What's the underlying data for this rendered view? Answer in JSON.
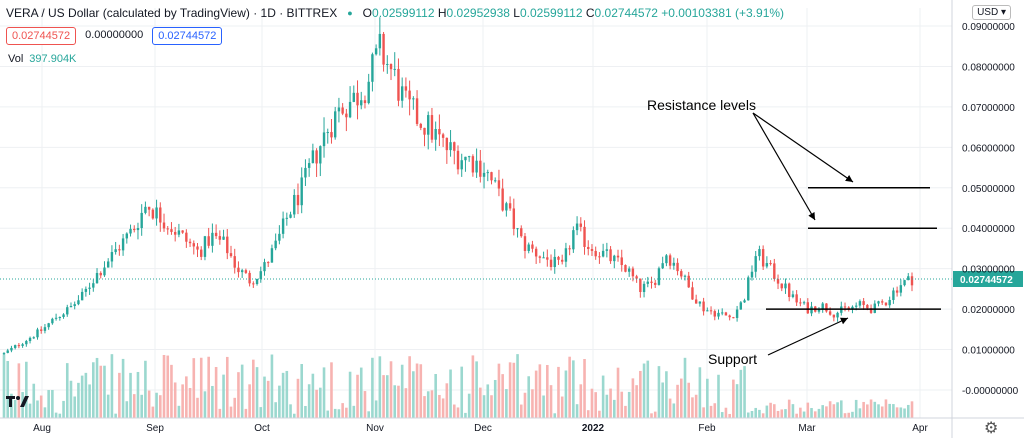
{
  "header": {
    "title": "VERA / US Dollar (calculated by TradingView) · 1D · BITTREX",
    "ohlc": {
      "o_label": "O",
      "o": "0.02599112",
      "h_label": "H",
      "h": "0.02952938",
      "l_label": "L",
      "l": "0.02599112",
      "c_label": "C",
      "c": "0.02744572",
      "change": "+0.00103381 (+3.91%)"
    },
    "price_boxes": {
      "sell": "0.02744572",
      "spread": "0.00000000",
      "buy": "0.02744572"
    },
    "volume_label": "Vol",
    "volume_value": "397.904K",
    "currency": "USD"
  },
  "chart_data": {
    "type": "candlestick",
    "y_tick_labels": [
      "0.09000000",
      "0.08000000",
      "0.07000000",
      "0.06000000",
      "0.05000000",
      "0.04000000",
      "0.03000000",
      "0.02000000",
      "0.01000000",
      "-0.00000000"
    ],
    "y_tick_values": [
      0.09,
      0.08,
      0.07,
      0.06,
      0.05,
      0.04,
      0.03,
      0.02,
      0.01,
      0.0
    ],
    "ylim": [
      -0.003,
      0.092
    ],
    "x_tick_labels": [
      "Aug",
      "Sep",
      "Oct",
      "Nov",
      "Dec",
      "2022",
      "Feb",
      "Mar",
      "Apr"
    ],
    "last_price": "0.02744572",
    "price_path": [
      0.009,
      0.011,
      0.013,
      0.015,
      0.018,
      0.02,
      0.023,
      0.028,
      0.032,
      0.036,
      0.04,
      0.046,
      0.043,
      0.04,
      0.037,
      0.034,
      0.038,
      0.036,
      0.03,
      0.027,
      0.03,
      0.036,
      0.044,
      0.05,
      0.058,
      0.065,
      0.07,
      0.072,
      0.076,
      0.084,
      0.078,
      0.07,
      0.067,
      0.064,
      0.06,
      0.058,
      0.057,
      0.055,
      0.049,
      0.043,
      0.036,
      0.034,
      0.032,
      0.03,
      0.04,
      0.036,
      0.034,
      0.032,
      0.03,
      0.025,
      0.026,
      0.034,
      0.03,
      0.024,
      0.02,
      0.019,
      0.018,
      0.022,
      0.034,
      0.03,
      0.026,
      0.022,
      0.02,
      0.021,
      0.019,
      0.02,
      0.021,
      0.02,
      0.022,
      0.026,
      0.0275
    ],
    "annotations": [
      {
        "text": "Resistance levels",
        "level": 0.05
      },
      {
        "text": "Resistance levels",
        "level": 0.04
      },
      {
        "text": "Support",
        "level": 0.02
      }
    ],
    "colors": {
      "up": "#26a69a",
      "down": "#ef5350",
      "vol_up": "#9bd8cf",
      "vol_down": "#f7b3b1",
      "last_price": "#26a69a",
      "grid": "#eef0f3"
    }
  }
}
